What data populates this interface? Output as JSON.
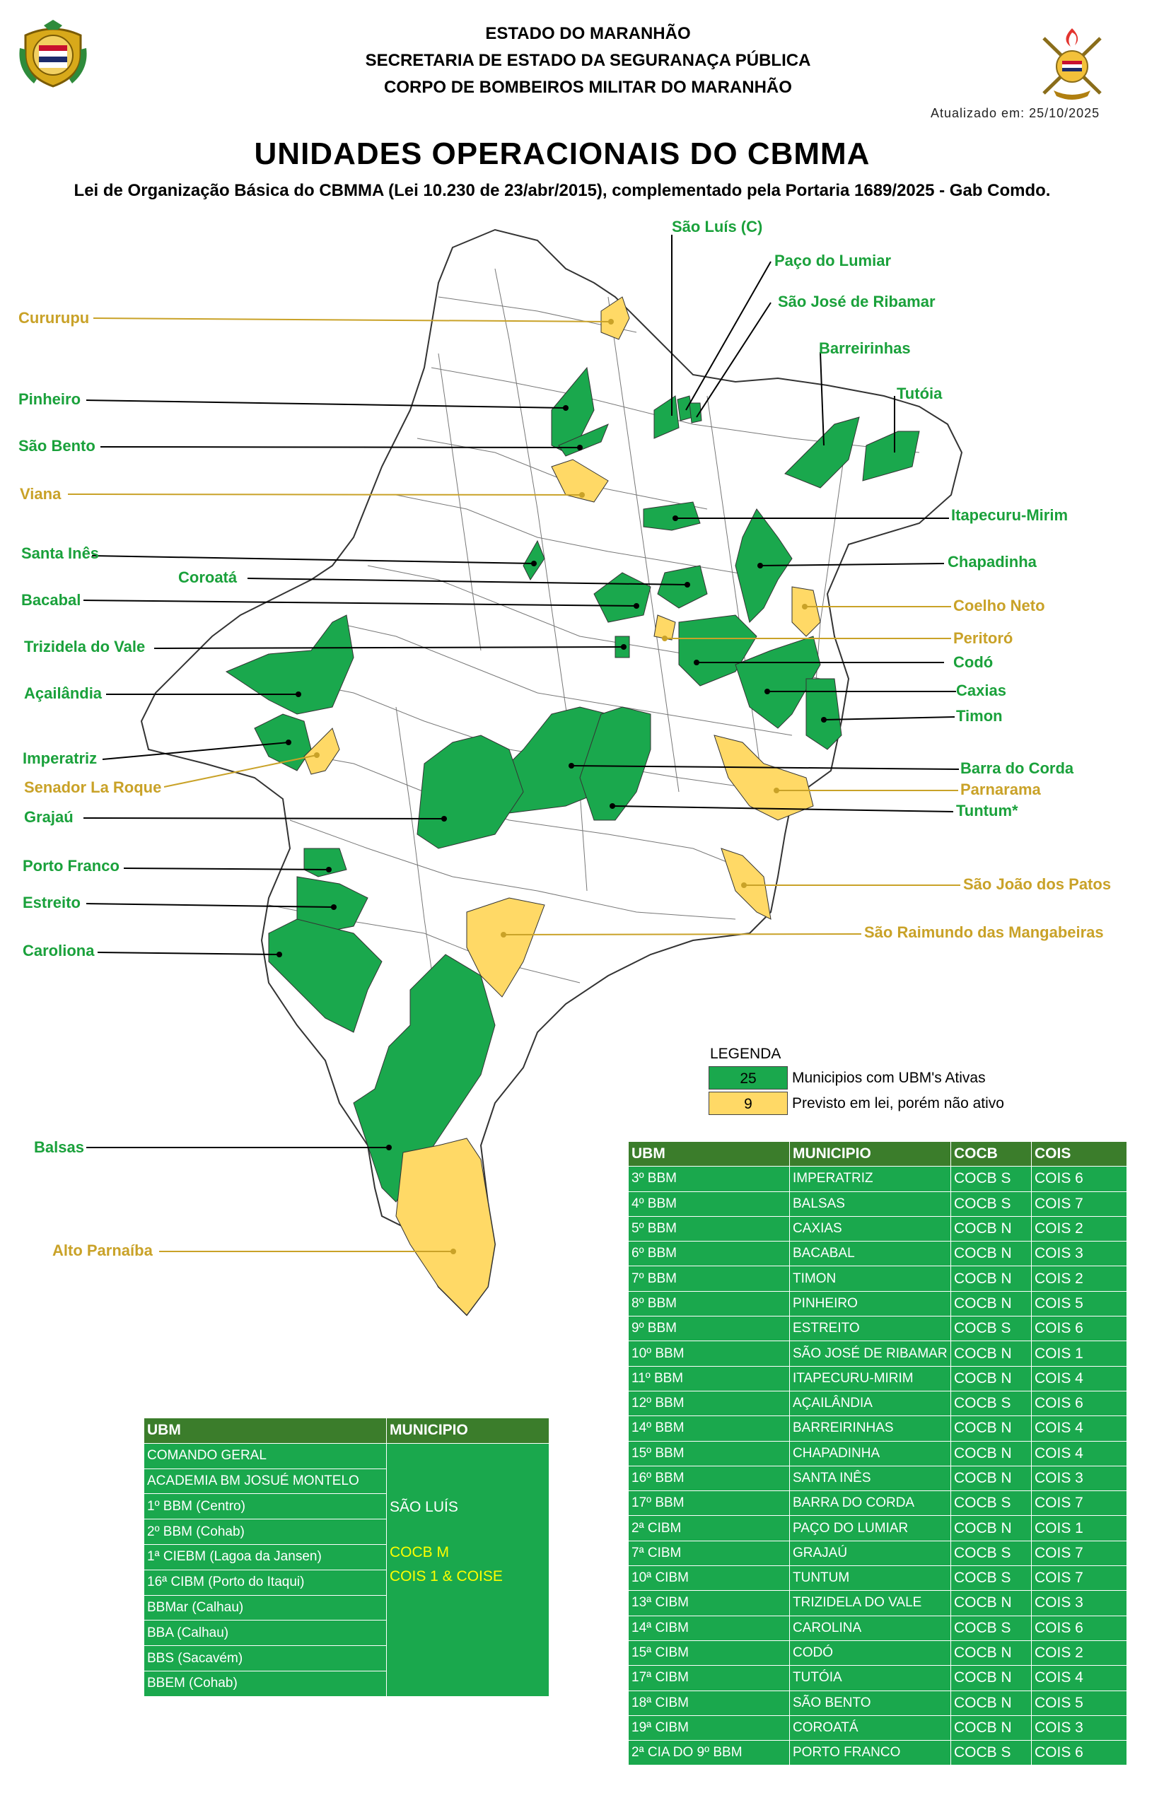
{
  "header": {
    "line1": "ESTADO DO MARANHÃO",
    "line2": "SECRETARIA DE ESTADO DA SEGURANAÇA PÚBLICA",
    "line3": "CORPO DE BOMBEIROS MILITAR DO MARANHÃO",
    "updated": "Atualizado em: 25/10/2025",
    "title": "UNIDADES OPERACIONAIS DO CBMMA",
    "subtitle": "Lei de Organização Básica do CBMMA (Lei 10.230 de 23/abr/2015), complementado pela Portaria 1689/2025 - Gab Comdo."
  },
  "colors": {
    "active": "#1aa84d",
    "planned": "#ffd966",
    "label_green": "#1aa13b",
    "label_yellow": "#c9a228",
    "header_green": "#3b7d2b"
  },
  "map_labels": {
    "sao_luis": "São Luís (C)",
    "paco_lumiar": "Paço do Lumiar",
    "sao_jose_ribamar": "São José de Ribamar",
    "barreirinhas": "Barreirinhas",
    "tutoia": "Tutóia",
    "cururupu": "Cururupu",
    "pinheiro": "Pinheiro",
    "sao_bento": "São Bento",
    "viana": "Viana",
    "itapecuru": "Itapecuru-Mirim",
    "santa_ines": "Santa Inês",
    "chapadinha": "Chapadinha",
    "coroata": "Coroatá",
    "bacabal": "Bacabal",
    "coelho_neto": "Coelho Neto",
    "peritoro": "Peritoró",
    "trizidela": "Trizidela do Vale",
    "codo": "Codó",
    "acailandia": "Açailândia",
    "caxias": "Caxias",
    "timon": "Timon",
    "imperatriz": "Imperatriz",
    "barra_corda": "Barra do Corda",
    "senador": "Senador La Roque",
    "parnarama": "Parnarama",
    "grajau": "Grajaú",
    "tuntum": "Tuntum*",
    "porto_franco": "Porto Franco",
    "sao_joao_patos": "São João dos Patos",
    "estreito": "Estreito",
    "sao_raimundo": "São Raimundo das Mangabeiras",
    "carolina": "Caroliona",
    "balsas": "Balsas",
    "alto_parnaiba": "Alto Parnaíba"
  },
  "legend": {
    "title": "LEGENDA",
    "active_count": "25",
    "active_text": "Municipios com UBM's Ativas",
    "planned_count": "9",
    "planned_text": "Previsto em lei, porém não ativo"
  },
  "right_table": {
    "headers": [
      "UBM",
      "MUNICIPIO",
      "COCB",
      "COIS"
    ],
    "rows": [
      [
        "3º BBM",
        "IMPERATRIZ",
        "COCB S",
        "COIS 6"
      ],
      [
        "4º BBM",
        "BALSAS",
        "COCB S",
        "COIS 7"
      ],
      [
        "5º BBM",
        "CAXIAS",
        "COCB N",
        "COIS 2"
      ],
      [
        "6º BBM",
        "BACABAL",
        "COCB N",
        "COIS 3"
      ],
      [
        "7º BBM",
        "TIMON",
        "COCB N",
        "COIS 2"
      ],
      [
        "8º BBM",
        "PINHEIRO",
        "COCB N",
        "COIS 5"
      ],
      [
        "9º BBM",
        "ESTREITO",
        "COCB S",
        "COIS 6"
      ],
      [
        "10º BBM",
        "SÃO JOSÉ DE RIBAMAR",
        "COCB N",
        "COIS 1"
      ],
      [
        "11º BBM",
        "ITAPECURU-MIRIM",
        "COCB N",
        "COIS 4"
      ],
      [
        "12º BBM",
        "AÇAILÂNDIA",
        "COCB S",
        "COIS 6"
      ],
      [
        "14º BBM",
        "BARREIRINHAS",
        "COCB N",
        "COIS 4"
      ],
      [
        "15º BBM",
        "CHAPADINHA",
        "COCB N",
        "COIS 4"
      ],
      [
        "16º BBM",
        "SANTA INÊS",
        "COCB N",
        "COIS 3"
      ],
      [
        "17º BBM",
        "BARRA DO CORDA",
        "COCB S",
        "COIS 7"
      ],
      [
        "2ª CIBM",
        "PAÇO DO LUMIAR",
        "COCB N",
        "COIS 1"
      ],
      [
        "7ª CIBM",
        "GRAJAÚ",
        "COCB S",
        "COIS 7"
      ],
      [
        "10ª CIBM",
        "TUNTUM",
        "COCB S",
        "COIS 7"
      ],
      [
        "13ª CIBM",
        "TRIZIDELA DO VALE",
        "COCB N",
        "COIS 3"
      ],
      [
        "14ª CIBM",
        "CAROLINA",
        "COCB S",
        "COIS 6"
      ],
      [
        "15ª CIBM",
        "CODÓ",
        "COCB N",
        "COIS 2"
      ],
      [
        "17ª CIBM",
        "TUTÓIA",
        "COCB N",
        "COIS 4"
      ],
      [
        "18ª CIBM",
        "SÃO BENTO",
        "COCB N",
        "COIS 5"
      ],
      [
        "19ª CIBM",
        "COROATÁ",
        "COCB N",
        "COIS 3"
      ],
      [
        "2ª CIA DO 9º BBM",
        "PORTO FRANCO",
        "COCB S",
        "COIS 6"
      ]
    ]
  },
  "left_table": {
    "headers": [
      "UBM",
      "MUNICIPIO"
    ],
    "rows": [
      "COMANDO GERAL",
      "ACADEMIA BM JOSUÉ MONTELO",
      "1º BBM (Centro)",
      "2º BBM (Cohab)",
      "1ª CIEBM (Lagoa da Jansen)",
      "16ª CIBM (Porto do Itaqui)",
      "BBMar (Calhau)",
      "BBA (Calhau)",
      "BBS (Sacavém)",
      "BBEM (Cohab)"
    ],
    "municipio": "SÃO LUÍS",
    "cocb": "COCB M",
    "cois": "COIS 1 & COISE"
  }
}
